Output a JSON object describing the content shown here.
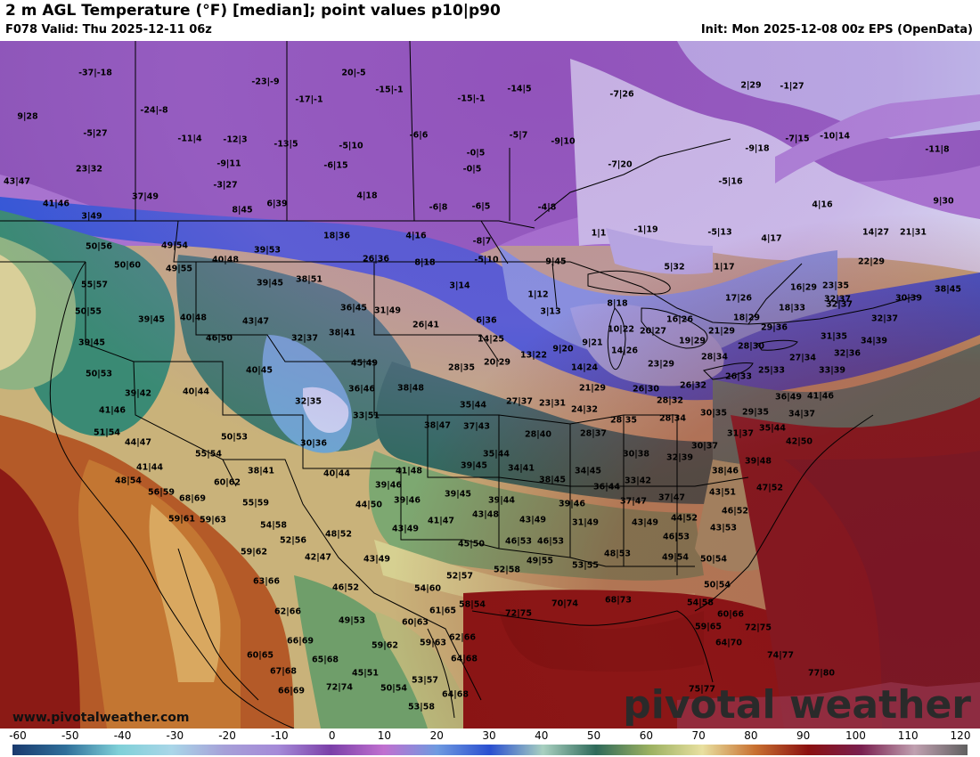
{
  "header": {
    "title": "2 m AGL Temperature (°F) [median]; point values p10|p90",
    "valid": "F078 Valid: Thu 2025-12-11 06z",
    "init": "Init: Mon 2025-12-08 00z EPS (OpenData)"
  },
  "footer": {
    "website": "www.pivotalweather.com",
    "watermark": "pivotal weather"
  },
  "colorbar": {
    "ticks": [
      "-60",
      "-50",
      "-40",
      "-30",
      "-20",
      "-10",
      "0",
      "10",
      "20",
      "30",
      "40",
      "50",
      "60",
      "70",
      "80",
      "90",
      "100",
      "110",
      "120"
    ],
    "stops": [
      "#1a3a6e",
      "#2f6f9a",
      "#7fd0d8",
      "#a9d6e8",
      "#a6a0d8",
      "#a58ad8",
      "#7b3fa8",
      "#c070d0",
      "#6f9ae0",
      "#2a4fd0",
      "#a8d0c0",
      "#2f6a5a",
      "#9ab060",
      "#e8e0a0",
      "#c87030",
      "#8a1010",
      "#7a2050",
      "#c0a0b0",
      "#606060"
    ]
  },
  "points": [
    [
      "-37|-18",
      107,
      82
    ],
    [
      "-23|-9",
      298,
      92
    ],
    [
      "20|-5",
      397,
      82
    ],
    [
      "-15|-1",
      437,
      101
    ],
    [
      "-14|5",
      583,
      100
    ],
    [
      "-7|26",
      698,
      106
    ],
    [
      "2|29",
      843,
      96
    ],
    [
      "-1|27",
      889,
      97
    ],
    [
      "9|28",
      31,
      131
    ],
    [
      "-24|-8",
      173,
      124
    ],
    [
      "-17|-1",
      347,
      112
    ],
    [
      "-15|-1",
      529,
      111
    ],
    [
      "-5|27",
      107,
      150
    ],
    [
      "-11|4",
      213,
      156
    ],
    [
      "-12|3",
      264,
      157
    ],
    [
      "-13|5",
      321,
      162
    ],
    [
      "-5|10",
      394,
      164
    ],
    [
      "-6|6",
      470,
      152
    ],
    [
      "-5|7",
      582,
      152
    ],
    [
      "-9|10",
      632,
      159
    ],
    [
      "-9|18",
      850,
      167
    ],
    [
      "-7|15",
      895,
      156
    ],
    [
      "-10|14",
      937,
      153
    ],
    [
      "-11|8",
      1052,
      168
    ],
    [
      "23|32",
      100,
      190
    ],
    [
      "-9|11",
      257,
      184
    ],
    [
      "-6|15",
      377,
      186
    ],
    [
      "-0|5",
      534,
      172
    ],
    [
      "-7|20",
      696,
      185
    ],
    [
      "43|47",
      19,
      204
    ],
    [
      "-3|27",
      253,
      208
    ],
    [
      "-5|16",
      820,
      204
    ],
    [
      "-0|5",
      530,
      190
    ],
    [
      "9|30",
      1059,
      226
    ],
    [
      "37|49",
      163,
      221
    ],
    [
      "4|18",
      412,
      220
    ],
    [
      "41|46",
      63,
      229
    ],
    [
      "8|45",
      272,
      236
    ],
    [
      "6|39",
      311,
      229
    ],
    [
      "-6|8",
      492,
      233
    ],
    [
      "-6|5",
      540,
      232
    ],
    [
      "-4|8",
      614,
      233
    ],
    [
      "4|16",
      923,
      230
    ],
    [
      "3|49",
      103,
      243
    ],
    [
      "-1|19",
      725,
      258
    ],
    [
      "-5|13",
      808,
      261
    ],
    [
      "4|17",
      866,
      268
    ],
    [
      "14|27",
      983,
      261
    ],
    [
      "21|31",
      1025,
      261
    ],
    [
      "18|36",
      378,
      265
    ],
    [
      "4|16",
      467,
      265
    ],
    [
      "-8|7",
      541,
      271
    ],
    [
      "1|1",
      672,
      262
    ],
    [
      "50|56",
      111,
      277
    ],
    [
      "49|54",
      196,
      276
    ],
    [
      "39|53",
      300,
      281
    ],
    [
      "26|36",
      422,
      291
    ],
    [
      "8|18",
      477,
      295
    ],
    [
      "-5|10",
      546,
      292
    ],
    [
      "9|45",
      624,
      294
    ],
    [
      "22|29",
      978,
      294
    ],
    [
      "40|48",
      253,
      292
    ],
    [
      "50|60",
      143,
      298
    ],
    [
      "49|55",
      201,
      302
    ],
    [
      "38|51",
      347,
      314
    ],
    [
      "39|45",
      303,
      318
    ],
    [
      "3|14",
      516,
      321
    ],
    [
      "1|17",
      813,
      300
    ],
    [
      "5|32",
      757,
      300
    ],
    [
      "16|29",
      902,
      323
    ],
    [
      "23|35",
      938,
      321
    ],
    [
      "55|57",
      106,
      320
    ],
    [
      "1|12",
      604,
      331
    ],
    [
      "8|18",
      693,
      341
    ],
    [
      "17|26",
      829,
      335
    ],
    [
      "30|39",
      1020,
      335
    ],
    [
      "38|45",
      1064,
      325
    ],
    [
      "32|37",
      942,
      342
    ],
    [
      "50|55",
      99,
      350
    ],
    [
      "39|45",
      170,
      359
    ],
    [
      "40|48",
      217,
      357
    ],
    [
      "36|45",
      397,
      346
    ],
    [
      "31|49",
      435,
      349
    ],
    [
      "3|13",
      618,
      350
    ],
    [
      "18|33",
      889,
      346
    ],
    [
      "18|29",
      838,
      357
    ],
    [
      "43|47",
      287,
      361
    ],
    [
      "6|36",
      546,
      360
    ],
    [
      "16|26",
      763,
      359
    ],
    [
      "32|37",
      993,
      358
    ],
    [
      "32|37",
      940,
      336
    ],
    [
      "10|22",
      697,
      370
    ],
    [
      "20|27",
      733,
      372
    ],
    [
      "21|29",
      810,
      372
    ],
    [
      "29|36",
      869,
      368
    ],
    [
      "46|50",
      246,
      380
    ],
    [
      "32|37",
      342,
      380
    ],
    [
      "38|41",
      384,
      374
    ],
    [
      "26|41",
      478,
      365
    ],
    [
      "14|25",
      551,
      381
    ],
    [
      "9|21",
      665,
      385
    ],
    [
      "19|29",
      777,
      383
    ],
    [
      "31|35",
      936,
      378
    ],
    [
      "34|39",
      981,
      383
    ],
    [
      "39|45",
      103,
      385
    ],
    [
      "28|30",
      843,
      389
    ],
    [
      "13|22",
      599,
      399
    ],
    [
      "9|20",
      632,
      392
    ],
    [
      "14|26",
      701,
      394
    ],
    [
      "28|34",
      802,
      401
    ],
    [
      "27|34",
      901,
      402
    ],
    [
      "32|36",
      951,
      397
    ],
    [
      "50|53",
      111,
      420
    ],
    [
      "45|49",
      409,
      408
    ],
    [
      "20|29",
      558,
      407
    ],
    [
      "28|35",
      518,
      413
    ],
    [
      "23|29",
      742,
      409
    ],
    [
      "25|33",
      866,
      416
    ],
    [
      "33|39",
      934,
      416
    ],
    [
      "40|45",
      291,
      416
    ],
    [
      "14|24",
      656,
      413
    ],
    [
      "26|33",
      829,
      423
    ],
    [
      "39|42",
      155,
      442
    ],
    [
      "40|44",
      220,
      440
    ],
    [
      "36|46",
      406,
      437
    ],
    [
      "38|48",
      461,
      436
    ],
    [
      "21|29",
      665,
      436
    ],
    [
      "26|30",
      725,
      437
    ],
    [
      "26|32",
      778,
      433
    ],
    [
      "32|35",
      346,
      451
    ],
    [
      "27|37",
      583,
      451
    ],
    [
      "23|31",
      620,
      453
    ],
    [
      "28|32",
      752,
      450
    ],
    [
      "36|49",
      885,
      446
    ],
    [
      "41|46",
      921,
      445
    ],
    [
      "41|46",
      126,
      461
    ],
    [
      "35|44",
      531,
      455
    ],
    [
      "24|32",
      656,
      460
    ],
    [
      "30|35",
      801,
      464
    ],
    [
      "29|35",
      848,
      463
    ],
    [
      "34|37",
      900,
      465
    ],
    [
      "33|51",
      411,
      467
    ],
    [
      "51|54",
      120,
      486
    ],
    [
      "38|47",
      491,
      478
    ],
    [
      "37|43",
      535,
      479
    ],
    [
      "28|35",
      700,
      472
    ],
    [
      "28|34",
      755,
      470
    ],
    [
      "35|44",
      867,
      481
    ],
    [
      "44|47",
      155,
      497
    ],
    [
      "50|53",
      263,
      491
    ],
    [
      "30|36",
      352,
      498
    ],
    [
      "28|40",
      604,
      488
    ],
    [
      "28|37",
      666,
      487
    ],
    [
      "31|37",
      831,
      487
    ],
    [
      "42|50",
      897,
      496
    ],
    [
      "55|54",
      234,
      510
    ],
    [
      "35|44",
      557,
      510
    ],
    [
      "30|38",
      714,
      510
    ],
    [
      "30|37",
      791,
      501
    ],
    [
      "32|39",
      763,
      514
    ],
    [
      "39|48",
      851,
      518
    ],
    [
      "41|44",
      168,
      525
    ],
    [
      "38|41",
      293,
      529
    ],
    [
      "39|45",
      532,
      523
    ],
    [
      "34|41",
      585,
      526
    ],
    [
      "41|48",
      459,
      529
    ],
    [
      "34|45",
      660,
      529
    ],
    [
      "40|44",
      378,
      532
    ],
    [
      "38|46",
      814,
      529
    ],
    [
      "48|54",
      144,
      540
    ],
    [
      "60|62",
      255,
      542
    ],
    [
      "38|45",
      620,
      539
    ],
    [
      "39|46",
      436,
      545
    ],
    [
      "33|42",
      716,
      540
    ],
    [
      "47|52",
      864,
      548
    ],
    [
      "56|59",
      181,
      553
    ],
    [
      "68|69",
      216,
      560
    ],
    [
      "36|44",
      681,
      547
    ],
    [
      "39|45",
      514,
      555
    ],
    [
      "39|46",
      457,
      562
    ],
    [
      "39|44",
      563,
      562
    ],
    [
      "39|46",
      642,
      566
    ],
    [
      "43|51",
      811,
      553
    ],
    [
      "37|47",
      711,
      563
    ],
    [
      "37|47",
      754,
      559
    ],
    [
      "55|59",
      287,
      565
    ],
    [
      "44|50",
      414,
      567
    ],
    [
      "46|52",
      825,
      574
    ],
    [
      "59|61",
      204,
      583
    ],
    [
      "59|63",
      239,
      584
    ],
    [
      "54|58",
      307,
      590
    ],
    [
      "41|47",
      495,
      585
    ],
    [
      "43|48",
      545,
      578
    ],
    [
      "43|49",
      598,
      584
    ],
    [
      "43|49",
      724,
      587
    ],
    [
      "44|52",
      768,
      582
    ],
    [
      "43|53",
      812,
      593
    ],
    [
      "48|52",
      380,
      600
    ],
    [
      "43|49",
      455,
      594
    ],
    [
      "31|49",
      657,
      587
    ],
    [
      "52|56",
      329,
      607
    ],
    [
      "45|50",
      529,
      611
    ],
    [
      "46|53",
      582,
      608
    ],
    [
      "46|53",
      618,
      608
    ],
    [
      "46|53",
      759,
      603
    ],
    [
      "59|62",
      285,
      620
    ],
    [
      "42|47",
      357,
      626
    ],
    [
      "43|49",
      423,
      628
    ],
    [
      "48|53",
      693,
      622
    ],
    [
      "49|54",
      758,
      626
    ],
    [
      "50|54",
      801,
      628
    ],
    [
      "49|55",
      606,
      630
    ],
    [
      "53|55",
      657,
      635
    ],
    [
      "52|57",
      516,
      647
    ],
    [
      "52|58",
      569,
      640
    ],
    [
      "63|66",
      299,
      653
    ],
    [
      "46|52",
      388,
      660
    ],
    [
      "54|60",
      480,
      661
    ],
    [
      "50|54",
      805,
      657
    ],
    [
      "58|54",
      530,
      679
    ],
    [
      "72|75",
      582,
      689
    ],
    [
      "70|74",
      634,
      678
    ],
    [
      "68|73",
      694,
      674
    ],
    [
      "54|58",
      786,
      677
    ],
    [
      "62|66",
      323,
      687
    ],
    [
      "61|65",
      497,
      686
    ],
    [
      "60|66",
      820,
      690
    ],
    [
      "49|53",
      395,
      697
    ],
    [
      "60|63",
      466,
      699
    ],
    [
      "59|65",
      795,
      704
    ],
    [
      "72|75",
      851,
      705
    ],
    [
      "66|69",
      337,
      720
    ],
    [
      "62|66",
      519,
      716
    ],
    [
      "64|70",
      818,
      722
    ],
    [
      "59|62",
      432,
      725
    ],
    [
      "59|63",
      486,
      722
    ],
    [
      "60|65",
      292,
      736
    ],
    [
      "65|68",
      365,
      741
    ],
    [
      "64|68",
      521,
      740
    ],
    [
      "74|77",
      876,
      736
    ],
    [
      "67|68",
      318,
      754
    ],
    [
      "45|51",
      410,
      756
    ],
    [
      "53|57",
      477,
      764
    ],
    [
      "77|80",
      922,
      756
    ],
    [
      "72|74",
      381,
      772
    ],
    [
      "50|54",
      442,
      773
    ],
    [
      "64|68",
      511,
      780
    ],
    [
      "66|69",
      327,
      776
    ],
    [
      "75|77",
      788,
      774
    ],
    [
      "53|58",
      473,
      794
    ]
  ]
}
